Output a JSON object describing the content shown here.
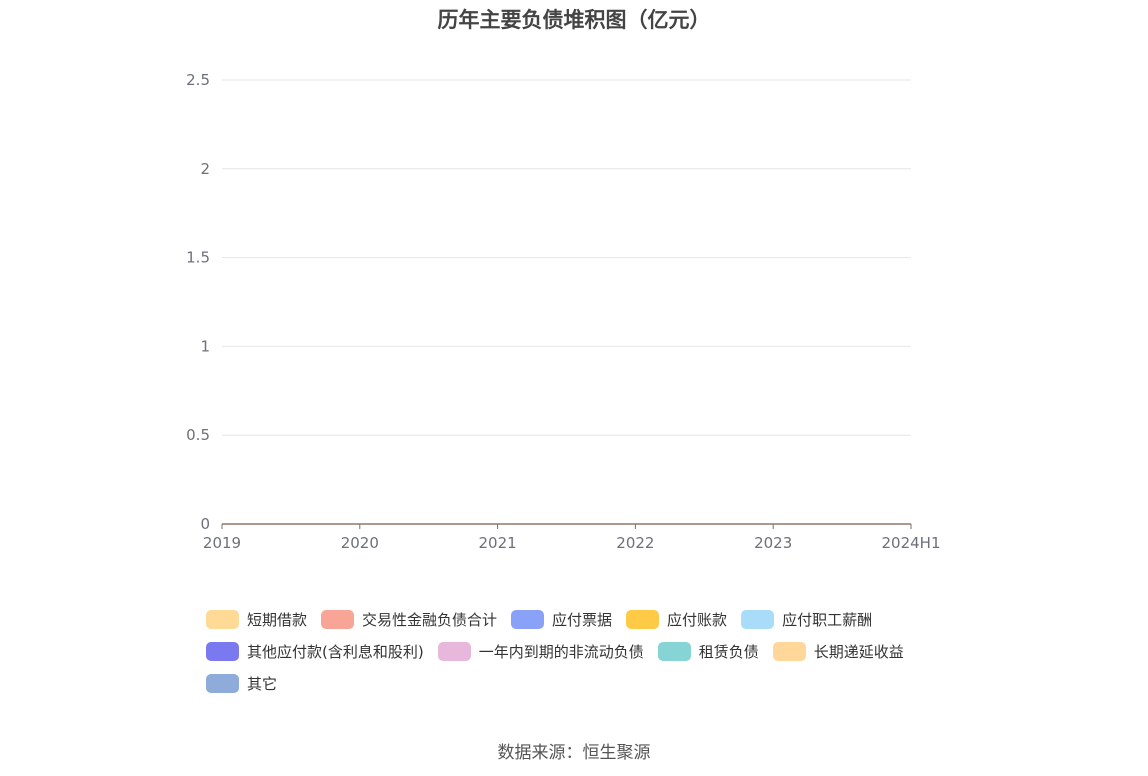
{
  "chart_data": {
    "type": "area",
    "stacked": true,
    "title": "历年主要负债堆积图（亿元）",
    "categories": [
      "2019",
      "2020",
      "2021",
      "2022",
      "2023",
      "2024H1"
    ],
    "ylim": [
      0,
      2.5
    ],
    "yticks": [
      "0",
      "0.5",
      "1",
      "1.5",
      "2",
      "2.5"
    ],
    "grid": true,
    "legend_position": "bottom",
    "series": [
      {
        "name": "短期借款",
        "color": "#ffd996",
        "values": [
          0,
          0,
          0,
          0,
          0,
          0
        ]
      },
      {
        "name": "交易性金融负债合计",
        "color": "#f8a597",
        "values": [
          0,
          0,
          0,
          0,
          0,
          0
        ]
      },
      {
        "name": "应付票据",
        "color": "#8aa1f8",
        "values": [
          0,
          0,
          0,
          0,
          0,
          0
        ]
      },
      {
        "name": "应付账款",
        "color": "#ffca45",
        "values": [
          0,
          0,
          0,
          0,
          0,
          0
        ]
      },
      {
        "name": "应付职工薪酬",
        "color": "#a8dcf8",
        "values": [
          0,
          0,
          0,
          0,
          0,
          0
        ]
      },
      {
        "name": "其他应付款(含利息和股利)",
        "color": "#7b79ef",
        "values": [
          0,
          0,
          0,
          0,
          0,
          0
        ]
      },
      {
        "name": "一年内到期的非流动负债",
        "color": "#e8b7dc",
        "values": [
          0,
          0,
          0,
          0,
          0,
          0
        ]
      },
      {
        "name": "租赁负债",
        "color": "#86d4d6",
        "values": [
          0,
          0,
          0,
          0,
          0,
          0
        ]
      },
      {
        "name": "长期递延收益",
        "color": "#ffd79a",
        "values": [
          0,
          0,
          0,
          0,
          0,
          0
        ]
      },
      {
        "name": "其它",
        "color": "#8eabda",
        "values": [
          0,
          0,
          0,
          0,
          0,
          0
        ]
      }
    ]
  },
  "source_text": "数据来源：恒生聚源"
}
